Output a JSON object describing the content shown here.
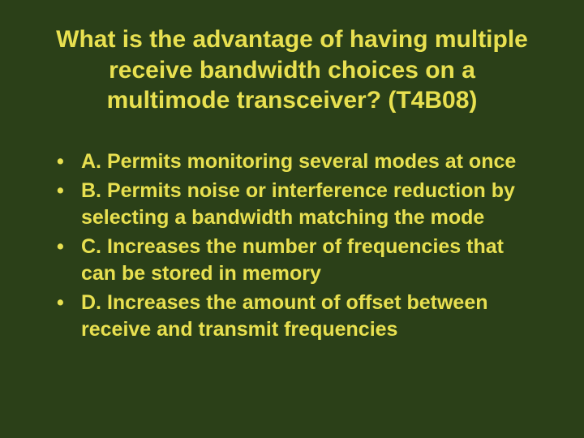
{
  "background_color": "#2b4018",
  "text_color": "#e8e050",
  "title_fontsize": 30,
  "option_fontsize": 25,
  "font_family": "Verdana, Geneva, sans-serif",
  "title": "What is the advantage of having multiple receive bandwidth choices on a multimode transceiver? (T4B08)",
  "options": {
    "a": "A. Permits monitoring several modes at once",
    "b": "B. Permits noise or interference reduction by selecting a bandwidth matching the mode",
    "c": "C. Increases the number of frequencies that can be stored in memory",
    "d": "D. Increases the amount of offset between receive and transmit frequencies"
  }
}
